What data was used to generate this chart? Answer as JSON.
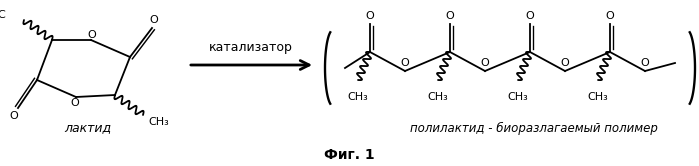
{
  "title": "Фиг. 1",
  "catalyst_label": "катализатор",
  "lactide_label": "лактид",
  "polylactide_label": "полилактид - биоразлагаемый полимер",
  "background_color": "#ffffff",
  "text_color": "#000000",
  "fig_width": 6.99,
  "fig_height": 1.66,
  "dpi": 100
}
